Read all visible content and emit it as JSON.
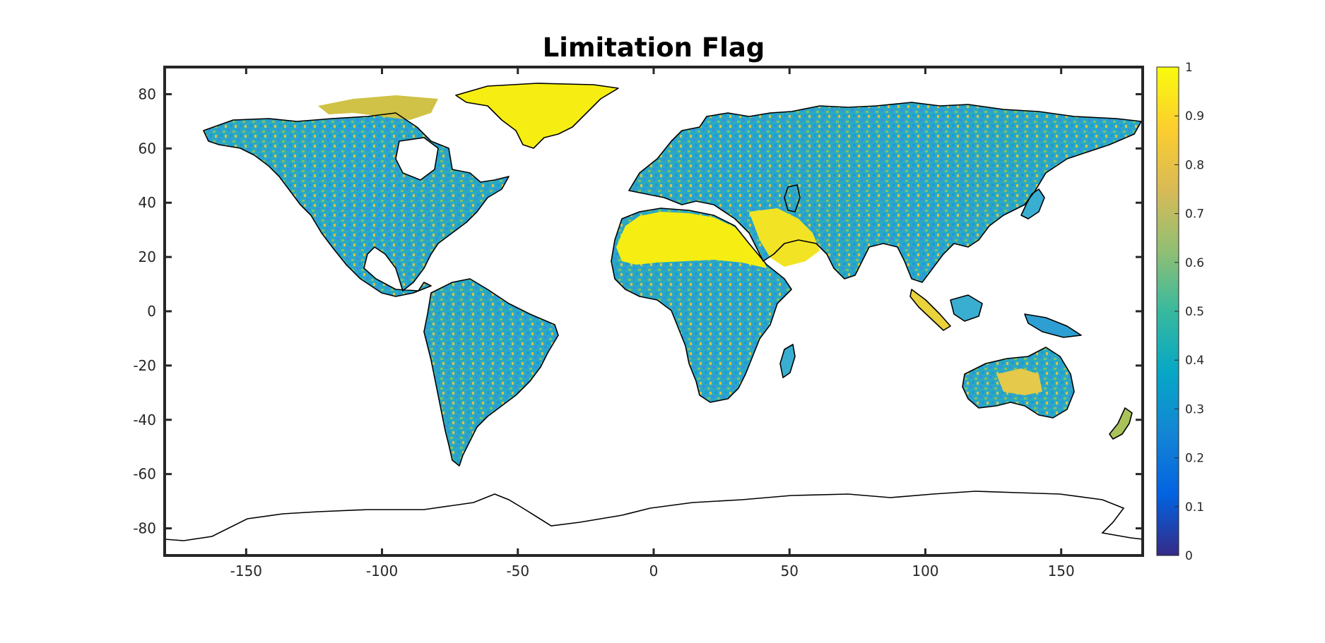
{
  "title": "Limitation Flag",
  "map": {
    "projection": "equirectangular",
    "lon_range": [
      -180,
      180
    ],
    "lat_range": [
      -90,
      90
    ],
    "lon_ticks": [
      -150,
      -100,
      -50,
      0,
      50,
      100,
      150
    ],
    "lat_ticks": [
      80,
      60,
      40,
      20,
      0,
      -20,
      -40,
      -60,
      -80
    ],
    "lon_tick_labels": [
      "-150",
      "-100",
      "-50",
      "0",
      "50",
      "100",
      "150"
    ],
    "lat_tick_labels": [
      "80",
      "60",
      "40",
      "20",
      "0",
      "-20",
      "-40",
      "-60",
      "-80"
    ],
    "frame_color": "#262626",
    "coastline_color": "#000000",
    "ocean_color": "#ffffff"
  },
  "colorbar": {
    "colormap": "parula",
    "range": [
      0,
      1
    ],
    "ticks": [
      0,
      0.1,
      0.2,
      0.3,
      0.4,
      0.5,
      0.6,
      0.7,
      0.8,
      0.9,
      1
    ],
    "tick_labels": [
      "0",
      "0.1",
      "0.2",
      "0.3",
      "0.4",
      "0.5",
      "0.6",
      "0.7",
      "0.8",
      "0.9",
      "1"
    ],
    "colors": [
      "#352a87",
      "#0363e1",
      "#1485d4",
      "#06a7c6",
      "#38b99e",
      "#92bf73",
      "#d9ba56",
      "#fcce2e",
      "#f9fb0e"
    ]
  }
}
